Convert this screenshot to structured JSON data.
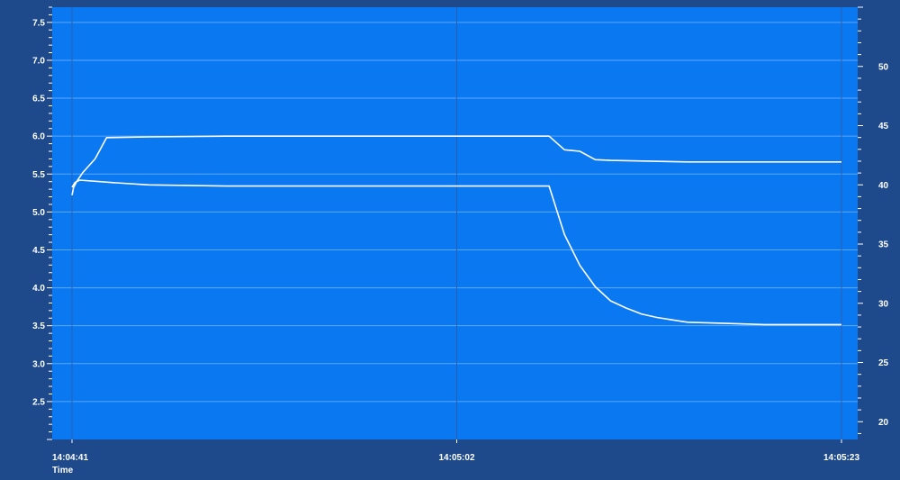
{
  "chart_data": {
    "type": "line",
    "title": "",
    "xlabel": "Time",
    "ylabel": "",
    "y2label": "",
    "grid": true,
    "legend": "none",
    "colors": {
      "frame": "#1e4a8c",
      "plot_bg": "#0a78f0",
      "grid": "#5aa8ff",
      "line": "#ffffff",
      "text": "#ffffff"
    },
    "x_axis": {
      "ticks": [
        "14:04:41",
        "14:05:02",
        "14:05:23"
      ],
      "range": [
        0,
        1
      ]
    },
    "y_left": {
      "range": [
        2.0,
        7.7
      ],
      "ticks": [
        "2.5",
        "3.0",
        "3.5",
        "4.0",
        "4.5",
        "5.0",
        "5.5",
        "6.0",
        "6.5",
        "7.0",
        "7.5"
      ]
    },
    "y_right": {
      "range": [
        18.5,
        55.0
      ],
      "ticks": [
        "20",
        "25",
        "30",
        "35",
        "40",
        "45",
        "50"
      ]
    },
    "series": [
      {
        "axis": "left",
        "x": [
          0.0,
          0.002,
          0.006,
          0.014,
          0.03,
          0.045,
          0.1,
          0.2,
          0.3,
          0.45,
          0.55,
          0.6,
          0.62,
          0.64,
          0.66,
          0.68,
          0.7,
          0.75,
          0.8,
          1.0
        ],
        "y": [
          5.22,
          5.32,
          5.4,
          5.52,
          5.7,
          5.98,
          5.99,
          6.0,
          6.0,
          6.0,
          6.0,
          6.0,
          6.0,
          5.82,
          5.8,
          5.69,
          5.68,
          5.67,
          5.66,
          5.66
        ]
      },
      {
        "axis": "right",
        "x": [
          0.0,
          0.004,
          0.01,
          0.05,
          0.1,
          0.2,
          0.3,
          0.4,
          0.5,
          0.6,
          0.62,
          0.64,
          0.66,
          0.68,
          0.7,
          0.72,
          0.74,
          0.76,
          0.78,
          0.8,
          0.85,
          0.9,
          0.95,
          1.0
        ],
        "y": [
          39.8,
          40.2,
          40.4,
          40.2,
          40.0,
          39.9,
          39.9,
          39.9,
          39.9,
          39.9,
          39.9,
          35.8,
          33.2,
          31.4,
          30.2,
          29.6,
          29.1,
          28.8,
          28.6,
          28.4,
          28.3,
          28.2,
          28.2,
          28.2
        ]
      }
    ]
  }
}
